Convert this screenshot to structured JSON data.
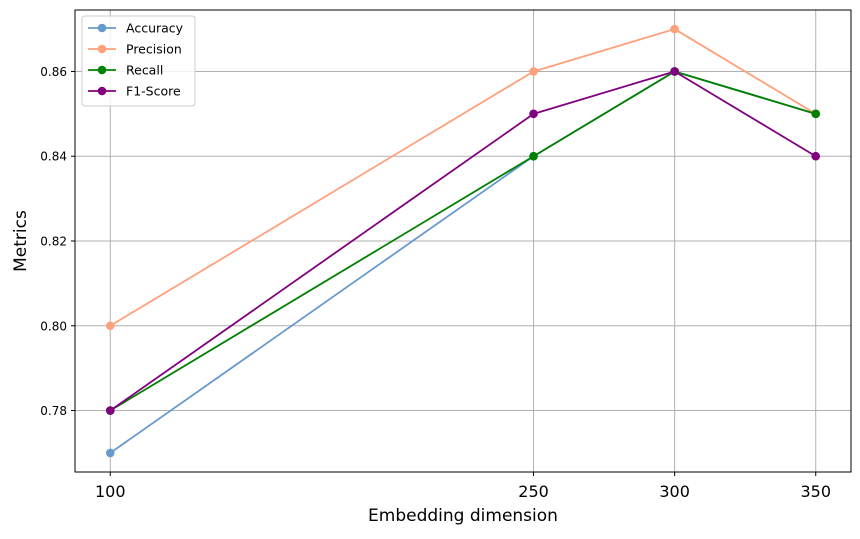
{
  "chart_data": {
    "type": "line",
    "title": "",
    "xlabel": "Embedding dimension",
    "ylabel": "Metrics",
    "x": [
      100,
      250,
      300,
      350
    ],
    "x_tick_labels": [
      "100",
      "250",
      "300",
      "350"
    ],
    "xlim": [
      87.5,
      362.5
    ],
    "ylim": [
      0.7655,
      0.8745
    ],
    "y_ticks": [
      0.78,
      0.8,
      0.82,
      0.84,
      0.86
    ],
    "y_tick_labels": [
      "0.78",
      "0.80",
      "0.82",
      "0.84",
      "0.86"
    ],
    "grid": true,
    "legend_position": "upper-left",
    "series": [
      {
        "name": "Accuracy",
        "color": "#6699cc",
        "values": [
          0.77,
          0.84,
          0.86,
          0.85
        ]
      },
      {
        "name": "Precision",
        "color": "#ffa07a",
        "values": [
          0.8,
          0.86,
          0.87,
          0.85
        ]
      },
      {
        "name": "Recall",
        "color": "#008000",
        "values": [
          0.78,
          0.84,
          0.86,
          0.85
        ]
      },
      {
        "name": "F1-Score",
        "color": "#800080",
        "values": [
          0.78,
          0.85,
          0.86,
          0.84
        ]
      }
    ]
  }
}
